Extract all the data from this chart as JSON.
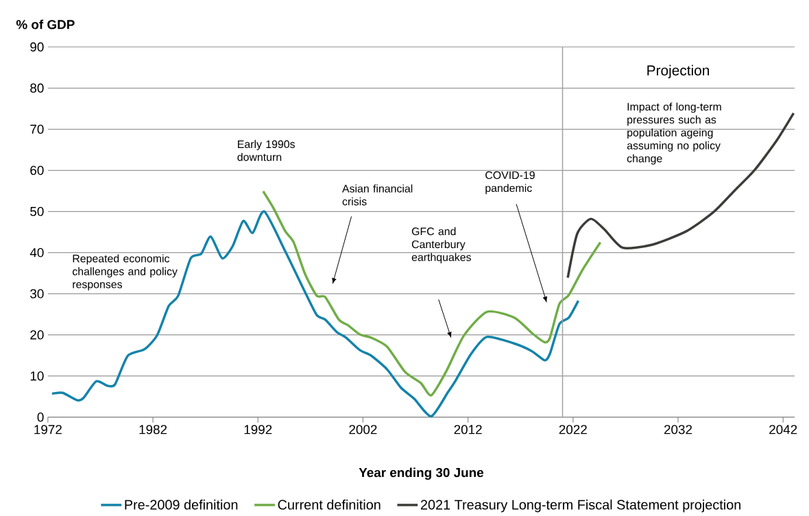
{
  "chart_data": {
    "type": "line",
    "ylabel": "% of GDP",
    "xlabel": "Year ending 30 June",
    "xlim": [
      1972,
      2043.1
    ],
    "ylim": [
      0,
      90
    ],
    "xticks": [
      1972,
      1982,
      1992,
      2002,
      2012,
      2022,
      2032,
      2042
    ],
    "yticks": [
      0,
      10,
      20,
      30,
      40,
      50,
      60,
      70,
      80,
      90
    ],
    "grid": "y",
    "legend": "bottom",
    "series": [
      {
        "name": "Pre-2009 definition",
        "color": "#1483aa",
        "x": [
          1972.4,
          1973.4,
          1974.8,
          1975.4,
          1976.6,
          1977.7,
          1978.4,
          1979.6,
          1981.2,
          1982.4,
          1983.5,
          1984.4,
          1985.6,
          1986.6,
          1987.5,
          1988.6,
          1989.6,
          1990.6,
          1991.5,
          1992.6,
          1994.6,
          1996.5,
          1997.6,
          1998.4,
          1999.5,
          2000.4,
          2001.7,
          2002.8,
          2004.3,
          2005.6,
          2006.9,
          2008.5,
          2010.1,
          2010.8,
          2012.3,
          2013.8,
          2016.4,
          2018.1,
          2019.3,
          2019.8,
          2020.7,
          2021.6,
          2022.5
        ],
        "values": [
          5.7,
          5.9,
          4.1,
          4.7,
          8.7,
          7.6,
          8.0,
          14.9,
          16.5,
          19.9,
          27.0,
          29.5,
          38.6,
          39.7,
          43.9,
          38.6,
          41.6,
          47.7,
          44.8,
          50.0,
          40.3,
          30.3,
          24.8,
          23.7,
          20.7,
          19.3,
          16.3,
          14.9,
          11.6,
          7.2,
          4.4,
          0.2,
          6.1,
          8.8,
          15.4,
          19.5,
          17.9,
          16.0,
          13.8,
          15.4,
          22.6,
          24.2,
          28.3
        ]
      },
      {
        "name": "Current definition",
        "color": "#70ad47",
        "x": [
          1992.5,
          1993.5,
          1994.6,
          1995.4,
          1996.5,
          1997.6,
          1998.4,
          1999.7,
          2000.6,
          2001.7,
          2002.8,
          2004.3,
          2006.0,
          2007.5,
          2008.5,
          2009.9,
          2011.6,
          2013.8,
          2016.4,
          2018.1,
          2019.3,
          2019.8,
          2020.7,
          2021.6,
          2022.9,
          2024.6
        ],
        "values": [
          54.9,
          50.7,
          45.2,
          42.5,
          34.7,
          29.5,
          29.2,
          23.7,
          22.3,
          20.1,
          19.3,
          17.1,
          11.0,
          8.3,
          5.3,
          11.0,
          19.8,
          25.6,
          24.2,
          20.4,
          18.2,
          19.3,
          27.5,
          29.7,
          35.8,
          42.5
        ]
      },
      {
        "name": "2021 Treasury Long-term Fiscal Statement projection",
        "color": "#3c3c3a",
        "x": [
          2021.5,
          2022.4,
          2023.7,
          2025.0,
          2026.7,
          2029.5,
          2032.8,
          2035.4,
          2037.5,
          2039.3,
          2041.4,
          2043.0
        ],
        "values": [
          33.9,
          44.6,
          48.2,
          45.6,
          41.2,
          41.9,
          45.2,
          49.9,
          55.4,
          60.1,
          67.3,
          73.9
        ]
      }
    ],
    "ref_lines": [
      {
        "axis": "x",
        "value": 2021,
        "color": "#a0a0a0"
      }
    ],
    "annotations": [
      "Repeated economic challenges and policy responses",
      "Early 1990s downturn",
      "Asian financial crisis",
      "GFC and Canterbury earthquakes",
      "COVID-19 pandemic",
      "Projection",
      "Impact of long-term pressures such as population ageing assuming no policy change"
    ]
  }
}
